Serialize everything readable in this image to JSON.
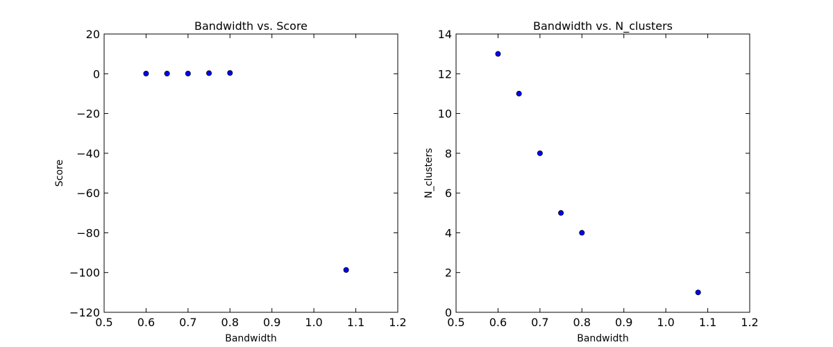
{
  "chart_data": [
    {
      "type": "scatter",
      "title": "Bandwidth vs. Score",
      "xlabel": "Bandwidth",
      "ylabel": "Score",
      "x": [
        0.6,
        0.65,
        0.7,
        0.75,
        0.8,
        1.077
      ],
      "y": [
        0.1,
        0.1,
        0.1,
        0.3,
        0.4,
        -98.7
      ],
      "xlim": [
        0.5,
        1.2
      ],
      "ylim": [
        -120,
        20
      ],
      "xticks": [
        0.5,
        0.6,
        0.7,
        0.8,
        0.9,
        1.0,
        1.1,
        1.2
      ],
      "yticks": [
        -120,
        -100,
        -80,
        -60,
        -40,
        -20,
        0,
        20
      ],
      "xtick_labels": [
        "0.5",
        "0.6",
        "0.7",
        "0.8",
        "0.9",
        "1.0",
        "1.1",
        "1.2"
      ],
      "ytick_labels": [
        "−120",
        "−100",
        "−80",
        "−60",
        "−40",
        "−20",
        "0",
        "20"
      ],
      "grid": false,
      "marker_color": "#0000ff"
    },
    {
      "type": "scatter",
      "title": "Bandwidth vs. N_clusters",
      "xlabel": "Bandwidth",
      "ylabel": "N_clusters",
      "x": [
        0.6,
        0.65,
        0.7,
        0.75,
        0.8,
        1.077
      ],
      "y": [
        13,
        11,
        8,
        5,
        4,
        1
      ],
      "xlim": [
        0.5,
        1.2
      ],
      "ylim": [
        0,
        14
      ],
      "xticks": [
        0.5,
        0.6,
        0.7,
        0.8,
        0.9,
        1.0,
        1.1,
        1.2
      ],
      "yticks": [
        0,
        2,
        4,
        6,
        8,
        10,
        12,
        14
      ],
      "xtick_labels": [
        "0.5",
        "0.6",
        "0.7",
        "0.8",
        "0.9",
        "1.0",
        "1.1",
        "1.2"
      ],
      "ytick_labels": [
        "0",
        "2",
        "4",
        "6",
        "8",
        "10",
        "12",
        "14"
      ],
      "grid": false,
      "marker_color": "#0000ff"
    }
  ]
}
